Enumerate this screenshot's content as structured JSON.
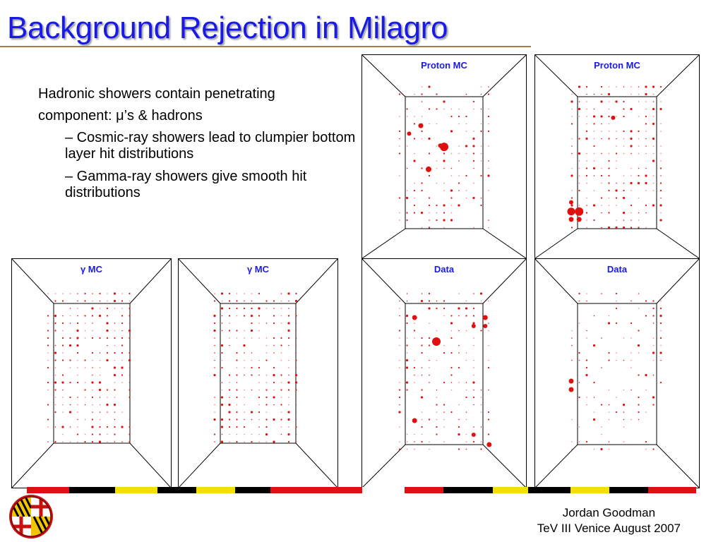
{
  "slide": {
    "title": "Background Rejection in Milagro",
    "colors": {
      "title": "#1a1ae6",
      "hit": "#e01010",
      "label": "#1a1ae6"
    }
  },
  "bullets": {
    "main_line1": "Hadronic showers contain penetrating",
    "main_line2": "component: μ’s & hadrons",
    "sub1": "– Cosmic-ray showers lead to clumpier bottom layer hit distributions",
    "sub2": "– Gamma-ray showers give smooth hit distributions"
  },
  "panels": [
    {
      "id": "gamma1",
      "label": "γ MC"
    },
    {
      "id": "gamma2",
      "label": "γ MC"
    },
    {
      "id": "proton1",
      "label": "Proton MC"
    },
    {
      "id": "proton2",
      "label": "Proton MC"
    },
    {
      "id": "data1",
      "label": "Data"
    },
    {
      "id": "data2",
      "label": "Data"
    }
  ],
  "footer": {
    "author": "Jordan Goodman",
    "event": "TeV III Venice August 2007"
  },
  "logo": {
    "icon": "maryland-seal-icon"
  }
}
